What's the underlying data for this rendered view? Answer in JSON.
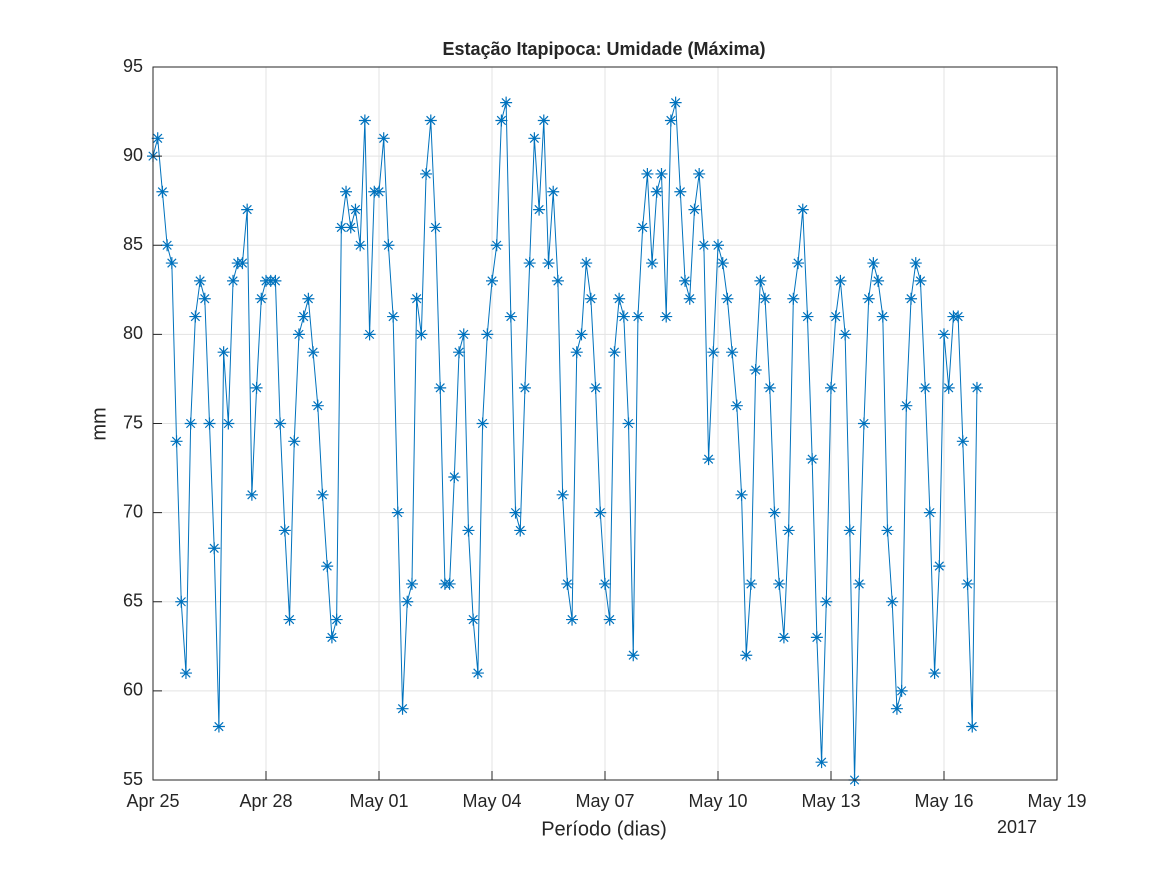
{
  "chart_data": {
    "type": "line",
    "title": "Estação Itapipoca: Umidade (Máxima)",
    "x_label": "Período (dias)",
    "y_label": "mm",
    "x_axis_year": "2017",
    "xlim": [
      0,
      24
    ],
    "ylim": [
      55,
      95
    ],
    "xticks": [
      {
        "value": 0,
        "label": "Apr 25"
      },
      {
        "value": 3,
        "label": "Apr 28"
      },
      {
        "value": 6,
        "label": "May 01"
      },
      {
        "value": 9,
        "label": "May 04"
      },
      {
        "value": 12,
        "label": "May 07"
      },
      {
        "value": 15,
        "label": "May 10"
      },
      {
        "value": 18,
        "label": "May 13"
      },
      {
        "value": 21,
        "label": "May 16"
      },
      {
        "value": 24,
        "label": "May 19"
      }
    ],
    "yticks": [
      55,
      60,
      65,
      70,
      75,
      80,
      85,
      90,
      95
    ],
    "grid": true,
    "marker": "asterisk",
    "x": [
      0,
      0.125,
      0.25,
      0.375,
      0.5,
      0.625,
      0.75,
      0.875,
      1,
      1.125,
      1.25,
      1.375,
      1.5,
      1.625,
      1.75,
      1.875,
      2,
      2.125,
      2.25,
      2.375,
      2.5,
      2.625,
      2.75,
      2.875,
      3,
      3.125,
      3.25,
      3.375,
      3.5,
      3.625,
      3.75,
      3.875,
      4,
      4.125,
      4.25,
      4.375,
      4.5,
      4.625,
      4.75,
      4.875,
      5,
      5.125,
      5.25,
      5.375,
      5.5,
      5.625,
      5.75,
      5.875,
      6,
      6.125,
      6.25,
      6.375,
      6.5,
      6.625,
      6.75,
      6.875,
      7,
      7.125,
      7.25,
      7.375,
      7.5,
      7.625,
      7.75,
      7.875,
      8,
      8.125,
      8.25,
      8.375,
      8.5,
      8.625,
      8.75,
      8.875,
      9,
      9.125,
      9.25,
      9.375,
      9.5,
      9.625,
      9.75,
      9.875,
      10,
      10.125,
      10.25,
      10.375,
      10.5,
      10.625,
      10.75,
      10.875,
      11,
      11.125,
      11.25,
      11.375,
      11.5,
      11.625,
      11.75,
      11.875,
      12,
      12.125,
      12.25,
      12.375,
      12.5,
      12.625,
      12.75,
      12.875,
      13,
      13.125,
      13.25,
      13.375,
      13.5,
      13.625,
      13.75,
      13.875,
      14,
      14.125,
      14.25,
      14.375,
      14.5,
      14.625,
      14.75,
      14.875,
      15,
      15.125,
      15.25,
      15.375,
      15.5,
      15.625,
      15.75,
      15.875,
      16,
      16.125,
      16.25,
      16.375,
      16.5,
      16.625,
      16.75,
      16.875,
      17,
      17.125,
      17.25,
      17.375,
      17.5,
      17.625,
      17.75,
      17.875,
      18,
      18.125,
      18.25,
      18.375,
      18.5,
      18.625,
      18.75,
      18.875,
      19,
      19.125,
      19.25,
      19.375,
      19.5,
      19.625,
      19.75,
      19.875,
      20,
      20.125,
      20.25,
      20.375,
      20.5,
      20.625,
      20.75,
      20.875,
      21,
      21.125,
      21.25,
      21.375,
      21.5,
      21.625,
      21.75,
      21.875
    ],
    "series": [
      {
        "name": "Umidade",
        "color": "#0072bd",
        "values": [
          90,
          91,
          88,
          85,
          84,
          74,
          65,
          61,
          75,
          81,
          83,
          82,
          75,
          68,
          58,
          79,
          75,
          83,
          84,
          84,
          87,
          71,
          77,
          82,
          83,
          83,
          83,
          75,
          69,
          64,
          74,
          80,
          81,
          82,
          79,
          76,
          71,
          67,
          63,
          64,
          86,
          88,
          86,
          87,
          85,
          92,
          80,
          88,
          88,
          91,
          85,
          81,
          70,
          59,
          65,
          66,
          82,
          80,
          89,
          92,
          86,
          77,
          66,
          66,
          72,
          79,
          80,
          69,
          64,
          61,
          75,
          80,
          83,
          85,
          92,
          93,
          81,
          70,
          69,
          77,
          84,
          91,
          87,
          92,
          84,
          88,
          83,
          71,
          66,
          64,
          79,
          80,
          84,
          82,
          77,
          70,
          66,
          64,
          79,
          82,
          81,
          75,
          62,
          81,
          86,
          89,
          84,
          88,
          89,
          81,
          92,
          93,
          88,
          83,
          82,
          87,
          89,
          85,
          73,
          79,
          85,
          84,
          82,
          79,
          76,
          71,
          62,
          66,
          78,
          83,
          82,
          77,
          70,
          66,
          63,
          69,
          82,
          84,
          87,
          81,
          73,
          63,
          56,
          65,
          77,
          81,
          83,
          80,
          69,
          55,
          66,
          75,
          82,
          84,
          83,
          81,
          69,
          65,
          59,
          60,
          76,
          82,
          84,
          83,
          77,
          70,
          61,
          67,
          80,
          77,
          81,
          81,
          74,
          66,
          58,
          77
        ]
      }
    ]
  }
}
